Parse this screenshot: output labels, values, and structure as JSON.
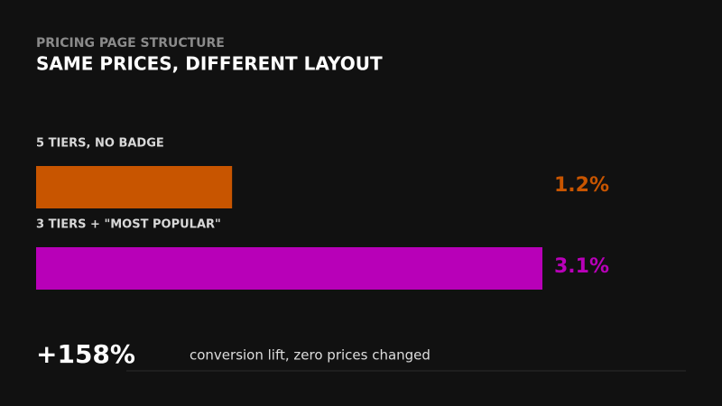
{
  "chart_data": {
    "type": "bar",
    "orientation": "horizontal",
    "subtitle": "PRICING PAGE STRUCTURE",
    "title": "SAME PRICES, DIFFERENT LAYOUT",
    "categories": [
      "5 TIERS, NO BADGE",
      "3 TIERS + \"MOST POPULAR\""
    ],
    "values": [
      1.2,
      3.1
    ],
    "value_labels": [
      "1.2%",
      "3.1%"
    ],
    "colors": [
      "#c85500",
      "#b800b8"
    ],
    "annotations": [
      "+158%",
      "conversion lift, zero prices changed"
    ]
  }
}
